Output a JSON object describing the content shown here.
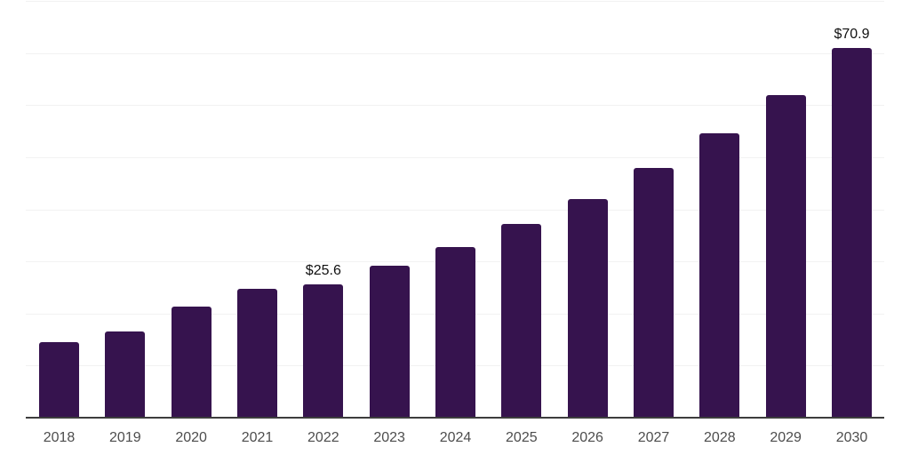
{
  "chart_data": {
    "type": "bar",
    "title": "",
    "categories": [
      "2018",
      "2019",
      "2020",
      "2021",
      "2022",
      "2023",
      "2024",
      "2025",
      "2026",
      "2027",
      "2028",
      "2029",
      "2030"
    ],
    "values": [
      14.5,
      16.5,
      21.4,
      24.8,
      25.6,
      29.1,
      32.7,
      37.2,
      42.0,
      47.9,
      54.6,
      62.0,
      70.9
    ],
    "value_labels": {
      "2022": "$25.6",
      "2030": "$70.9"
    },
    "xlabel": "",
    "ylabel": "",
    "ylim": [
      0,
      80
    ],
    "y_gridline_interval": 10,
    "grid": "horizontal",
    "legend": "none",
    "y_axis_tick_labels": "none",
    "colors": {
      "bar": "#36134E",
      "axis": "#3D3D3D",
      "gridline": "#F2F2F2",
      "tick_label": "#4D4D4D",
      "value_label": "#111111",
      "background": "#FFFFFF"
    }
  }
}
